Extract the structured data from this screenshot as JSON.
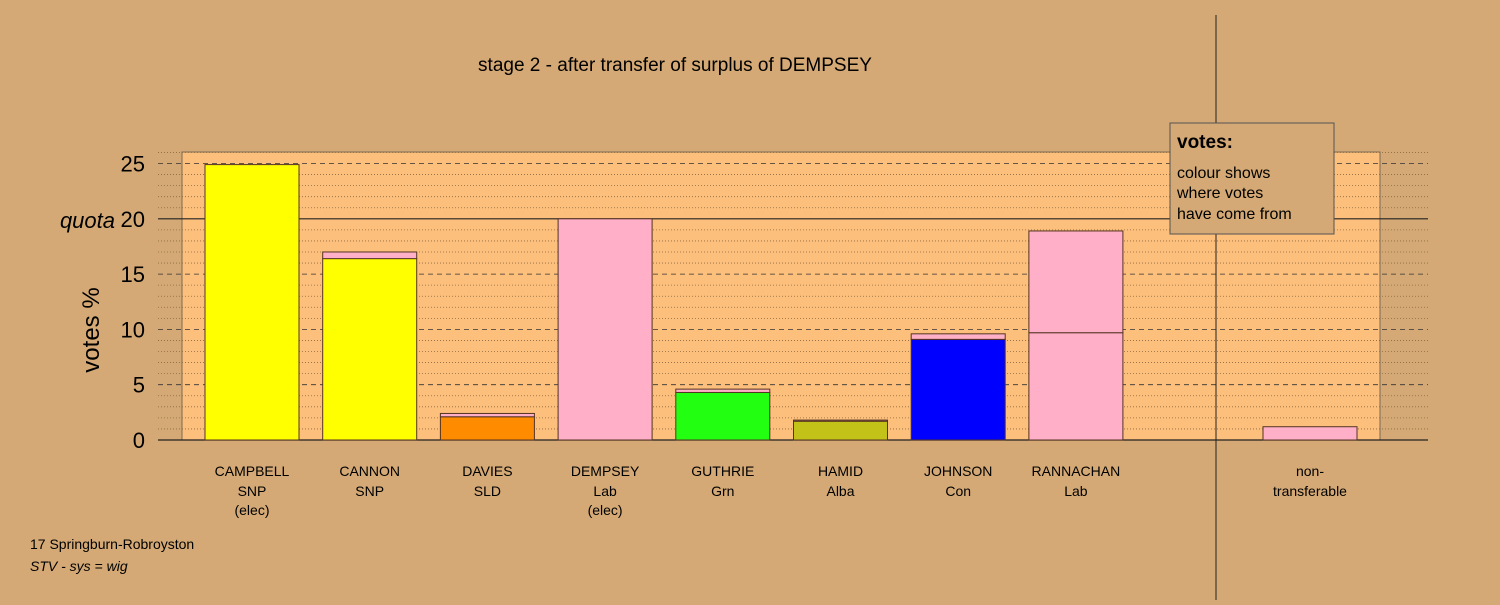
{
  "chart_data": {
    "type": "bar",
    "title": "stage 2 - after transfer of surplus of DEMPSEY",
    "ylabel": "votes %",
    "ylim": [
      0,
      25
    ],
    "yticks": [
      0,
      5,
      10,
      15,
      20,
      25
    ],
    "quota": {
      "label": "quota",
      "value": 20
    },
    "stacked": true,
    "colors": {
      "SNP": "#ffff00",
      "Lab": "#ffb0c8",
      "SLD": "#ff8c00",
      "Grn": "#22ff11",
      "Alba": "#c2c218",
      "Con": "#0000ff"
    },
    "candidates": [
      {
        "name": "CAMPBELL",
        "party": "SNP",
        "status": "(elec)",
        "segments": [
          {
            "from": "SNP",
            "value": 24.9
          }
        ]
      },
      {
        "name": "CANNON",
        "party": "SNP",
        "status": "",
        "segments": [
          {
            "from": "SNP",
            "value": 16.4
          },
          {
            "from": "Lab",
            "value": 0.6
          }
        ]
      },
      {
        "name": "DAVIES",
        "party": "SLD",
        "status": "",
        "segments": [
          {
            "from": "SLD",
            "value": 2.1
          },
          {
            "from": "Lab",
            "value": 0.3
          }
        ]
      },
      {
        "name": "DEMPSEY",
        "party": "Lab",
        "status": "(elec)",
        "segments": [
          {
            "from": "Lab",
            "value": 20.0
          }
        ]
      },
      {
        "name": "GUTHRIE",
        "party": "Grn",
        "status": "",
        "segments": [
          {
            "from": "Grn",
            "value": 4.3
          },
          {
            "from": "Lab",
            "value": 0.3
          }
        ]
      },
      {
        "name": "HAMID",
        "party": "Alba",
        "status": "",
        "segments": [
          {
            "from": "Alba",
            "value": 1.7
          },
          {
            "from": "Lab",
            "value": 0.1
          }
        ]
      },
      {
        "name": "JOHNSON",
        "party": "Con",
        "status": "",
        "segments": [
          {
            "from": "Con",
            "value": 9.1
          },
          {
            "from": "Lab",
            "value": 0.5
          }
        ]
      },
      {
        "name": "RANNACHAN",
        "party": "Lab",
        "status": "",
        "segments": [
          {
            "from": "Lab",
            "value": 9.7
          },
          {
            "from": "Lab",
            "value": 9.2
          }
        ]
      }
    ],
    "non_transferable": {
      "label_line1": "non-",
      "label_line2": "transferable",
      "segments": [
        {
          "from": "Lab",
          "value": 1.2
        }
      ]
    },
    "legend": {
      "title": "votes:",
      "lines": [
        "colour shows",
        "where votes",
        "have come from"
      ]
    }
  },
  "footer": {
    "line1": "17 Springburn-Robroyston",
    "line2": "STV - sys = wig"
  }
}
